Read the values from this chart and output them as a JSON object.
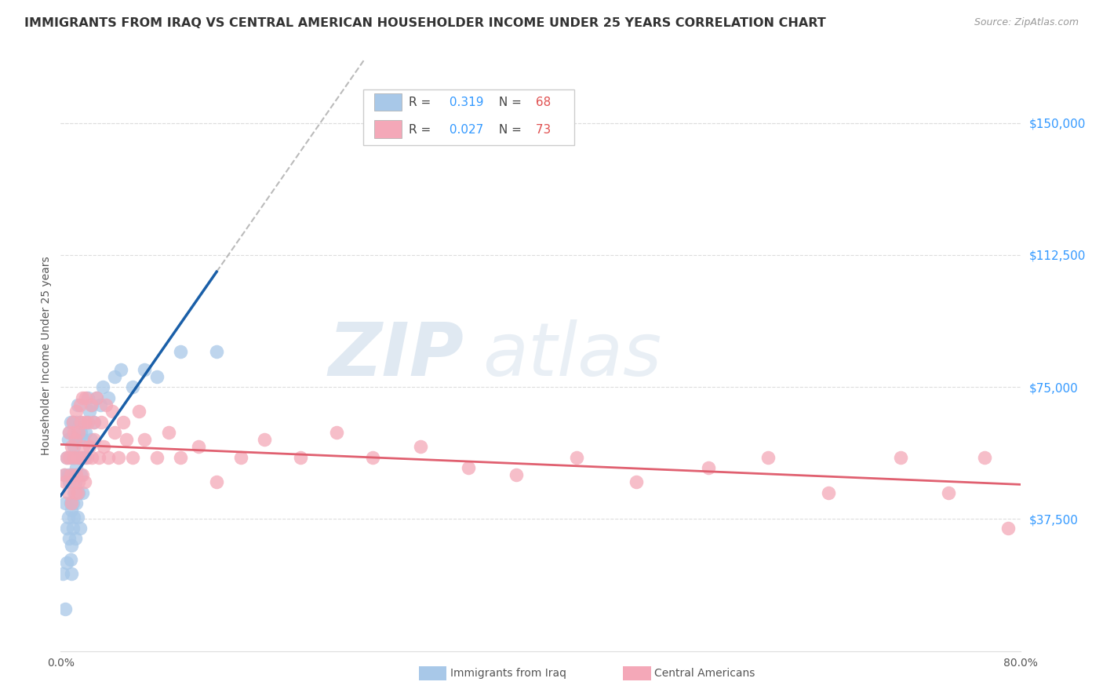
{
  "title": "IMMIGRANTS FROM IRAQ VS CENTRAL AMERICAN HOUSEHOLDER INCOME UNDER 25 YEARS CORRELATION CHART",
  "source": "Source: ZipAtlas.com",
  "ylabel": "Householder Income Under 25 years",
  "yticks_labels": [
    "$37,500",
    "$75,000",
    "$112,500",
    "$150,000"
  ],
  "ytick_vals": [
    37500,
    75000,
    112500,
    150000
  ],
  "ymin": 0,
  "ymax": 168000,
  "xmin": 0.0,
  "xmax": 0.8,
  "iraq_R": 0.319,
  "iraq_N": 68,
  "central_R": 0.027,
  "central_N": 73,
  "iraq_color": "#a8c8e8",
  "central_color": "#f4a8b8",
  "trendline_iraq_color": "#1a5fa8",
  "trendline_central_color": "#e06070",
  "dashed_line_color": "#aaaaaa",
  "background_color": "#ffffff",
  "title_color": "#333333",
  "title_fontsize": 11.5,
  "watermark_zip": "ZIP",
  "watermark_atlas": "atlas",
  "ytick_color": "#3399ff",
  "legend_R_color": "#3399ff",
  "legend_N_color": "#e05050",
  "iraq_scatter_x": [
    0.002,
    0.003,
    0.004,
    0.004,
    0.005,
    0.005,
    0.005,
    0.006,
    0.006,
    0.006,
    0.007,
    0.007,
    0.007,
    0.008,
    0.008,
    0.008,
    0.008,
    0.009,
    0.009,
    0.009,
    0.009,
    0.01,
    0.01,
    0.01,
    0.01,
    0.011,
    0.011,
    0.011,
    0.011,
    0.012,
    0.012,
    0.012,
    0.012,
    0.013,
    0.013,
    0.013,
    0.014,
    0.014,
    0.014,
    0.015,
    0.015,
    0.015,
    0.016,
    0.016,
    0.017,
    0.017,
    0.018,
    0.018,
    0.019,
    0.02,
    0.021,
    0.022,
    0.023,
    0.024,
    0.025,
    0.026,
    0.028,
    0.03,
    0.033,
    0.035,
    0.04,
    0.045,
    0.05,
    0.06,
    0.07,
    0.08,
    0.1,
    0.13
  ],
  "iraq_scatter_y": [
    22000,
    50000,
    42000,
    12000,
    55000,
    35000,
    25000,
    38000,
    50000,
    60000,
    32000,
    48000,
    62000,
    26000,
    55000,
    65000,
    42000,
    30000,
    50000,
    40000,
    22000,
    35000,
    55000,
    42000,
    65000,
    38000,
    50000,
    58000,
    45000,
    32000,
    60000,
    48000,
    55000,
    42000,
    65000,
    52000,
    38000,
    62000,
    70000,
    45000,
    55000,
    60000,
    35000,
    65000,
    50000,
    62000,
    55000,
    45000,
    60000,
    55000,
    62000,
    65000,
    72000,
    68000,
    60000,
    70000,
    65000,
    72000,
    70000,
    75000,
    72000,
    78000,
    80000,
    75000,
    80000,
    78000,
    85000,
    85000
  ],
  "central_scatter_x": [
    0.003,
    0.004,
    0.005,
    0.006,
    0.007,
    0.007,
    0.008,
    0.009,
    0.009,
    0.01,
    0.01,
    0.011,
    0.011,
    0.012,
    0.012,
    0.013,
    0.013,
    0.014,
    0.014,
    0.015,
    0.015,
    0.016,
    0.016,
    0.017,
    0.018,
    0.018,
    0.019,
    0.02,
    0.02,
    0.021,
    0.022,
    0.023,
    0.024,
    0.025,
    0.026,
    0.027,
    0.028,
    0.03,
    0.032,
    0.034,
    0.036,
    0.038,
    0.04,
    0.043,
    0.045,
    0.048,
    0.052,
    0.055,
    0.06,
    0.065,
    0.07,
    0.08,
    0.09,
    0.1,
    0.115,
    0.13,
    0.15,
    0.17,
    0.2,
    0.23,
    0.26,
    0.3,
    0.34,
    0.38,
    0.43,
    0.48,
    0.54,
    0.59,
    0.64,
    0.7,
    0.74,
    0.77,
    0.79
  ],
  "central_scatter_y": [
    50000,
    48000,
    55000,
    45000,
    55000,
    62000,
    50000,
    58000,
    42000,
    65000,
    48000,
    55000,
    62000,
    45000,
    60000,
    50000,
    68000,
    55000,
    45000,
    62000,
    48000,
    70000,
    55000,
    65000,
    50000,
    72000,
    58000,
    65000,
    48000,
    72000,
    55000,
    65000,
    58000,
    70000,
    55000,
    65000,
    60000,
    72000,
    55000,
    65000,
    58000,
    70000,
    55000,
    68000,
    62000,
    55000,
    65000,
    60000,
    55000,
    68000,
    60000,
    55000,
    62000,
    55000,
    58000,
    48000,
    55000,
    60000,
    55000,
    62000,
    55000,
    58000,
    52000,
    50000,
    55000,
    48000,
    52000,
    55000,
    45000,
    55000,
    45000,
    55000,
    35000
  ]
}
